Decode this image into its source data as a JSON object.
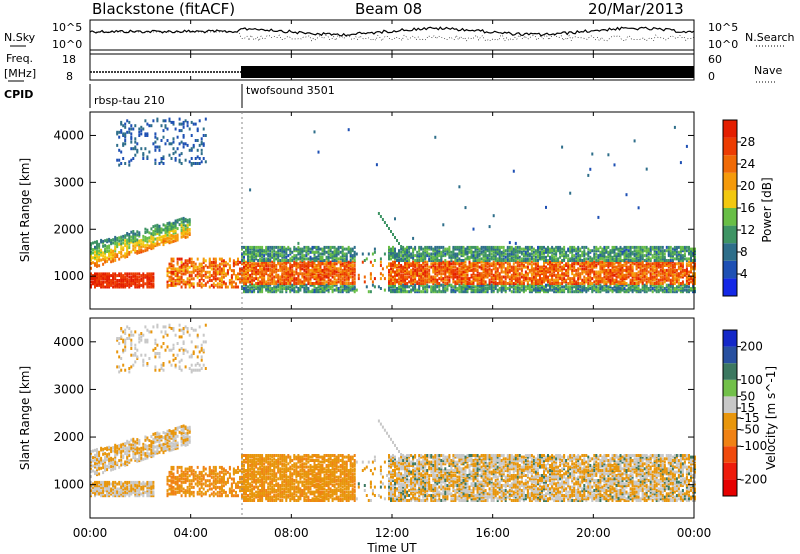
{
  "header": {
    "station": "Blackstone (fitACF)",
    "beam": "Beam 08",
    "date": "20/Mar/2013"
  },
  "ancillary": {
    "nsky_label": "N.Sky",
    "nsky_ticks": [
      "10^5",
      "10^0"
    ],
    "nsearch_label": "N.Search",
    "freq_label_1": "Freq.",
    "freq_label_2": "[MHz]",
    "freq_ticks": [
      "18",
      "8"
    ],
    "nave_label": "Nave",
    "nave_ticks": [
      "60",
      "0"
    ],
    "cpid_label": "CPID",
    "cpid_modes": [
      {
        "name": "rbsp-tau 210",
        "start_hour": 0
      },
      {
        "name": "twofsound 3501",
        "start_hour": 6
      }
    ]
  },
  "colors": {
    "power_scale": [
      "#1428e6",
      "#1e50b4",
      "#2e6e8a",
      "#3e9464",
      "#68be46",
      "#f2c810",
      "#f59a0a",
      "#f06a06",
      "#ec3c02",
      "#e41e00"
    ],
    "velocity_scale": [
      "#1428c8",
      "#2850a0",
      "#3c7860",
      "#72c04a",
      "#c8c8c8",
      "#e8960c",
      "#f08214",
      "#f04a0c",
      "#ee1c0c",
      "#e60000"
    ]
  },
  "chart_data": [
    {
      "type": "heatmap",
      "name": "power",
      "ylabel": "Slant Range [km]",
      "xlim": [
        0,
        24
      ],
      "ylim": [
        300,
        4500
      ],
      "yticks": [
        1000,
        2000,
        3000,
        4000
      ],
      "colorbar": {
        "label": "Power [dB]",
        "ticks": [
          4,
          8,
          12,
          16,
          20,
          24,
          28
        ],
        "range": [
          0,
          32
        ]
      },
      "features": [
        {
          "desc": "low echo band",
          "hours": [
            0,
            2.5
          ],
          "range_km": [
            800,
            1100
          ],
          "level": 30
        },
        {
          "desc": "rising echo band",
          "hours": [
            0,
            4.0
          ],
          "range_km_start": [
            1200,
            1750
          ],
          "range_km_end": [
            1900,
            2300
          ],
          "level": 12
        },
        {
          "desc": "high scattered echoes",
          "hours": [
            1.0,
            4.5
          ],
          "range_km": [
            3500,
            4400
          ],
          "level": 6
        },
        {
          "desc": "main band",
          "hours": [
            6.0,
            24.0
          ],
          "range_km": [
            800,
            1600
          ],
          "level": 22
        },
        {
          "desc": "descending echo",
          "hours": [
            11.5,
            12.5
          ],
          "range_km_start": [
            2400
          ],
          "range_km_end": [
            1400
          ],
          "level": 12
        }
      ]
    },
    {
      "type": "heatmap",
      "name": "velocity",
      "ylabel": "Slant Range [km]",
      "xlabel": "Time UT",
      "xlim": [
        0,
        24
      ],
      "xticks": [
        "00:00",
        "04:00",
        "08:00",
        "12:00",
        "16:00",
        "20:00",
        "00:00"
      ],
      "ylim": [
        300,
        4500
      ],
      "yticks": [
        1000,
        2000,
        3000,
        4000
      ],
      "colorbar": {
        "label": "Velocity [m s^-1]",
        "ticks": [
          200,
          100,
          50,
          15,
          -15,
          -50,
          -100,
          -200
        ],
        "range": [
          -250,
          250
        ]
      },
      "features": [
        {
          "desc": "ground scatter band",
          "hours": [
            0,
            4.0
          ],
          "range_km": [
            800,
            2000
          ],
          "velocity": 0
        },
        {
          "desc": "westward flow region",
          "hours": [
            4.5,
            10.5
          ],
          "range_km": [
            700,
            1500
          ],
          "velocity": -60
        },
        {
          "desc": "mixed band",
          "hours": [
            12.0,
            24.0
          ],
          "range_km": [
            700,
            1500
          ],
          "velocity": 0
        }
      ]
    }
  ]
}
